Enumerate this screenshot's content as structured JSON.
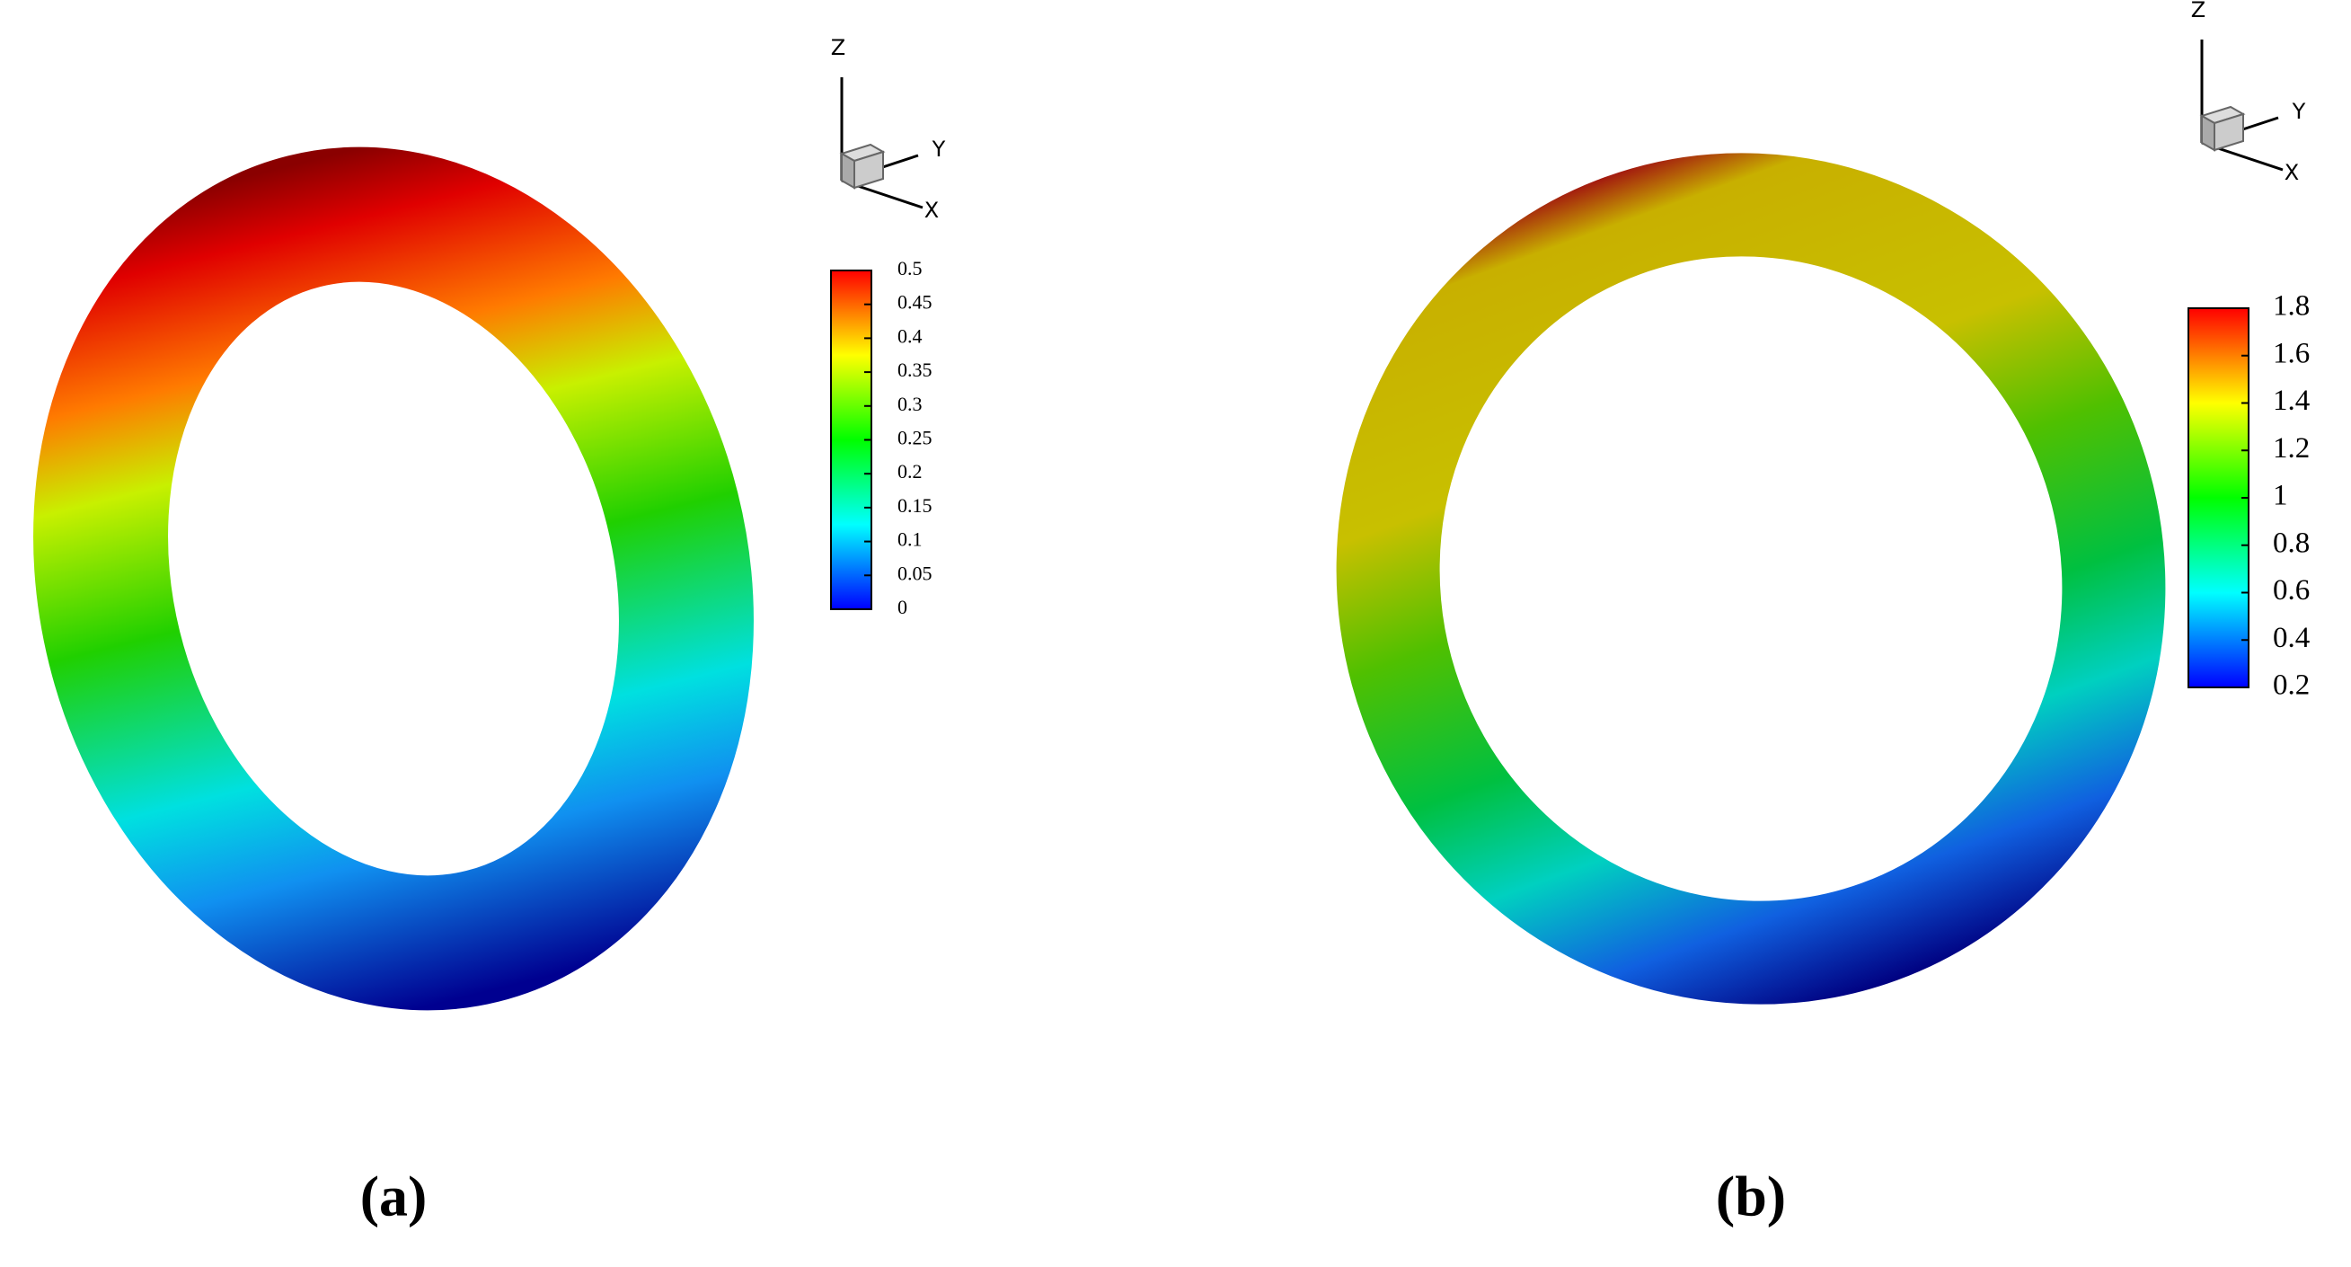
{
  "panels": [
    {
      "label": "(a)",
      "axes": {
        "x": "X",
        "y": "Y",
        "z": "Z"
      },
      "colorbar": {
        "ticks": [
          0,
          0.05,
          0.1,
          0.15,
          0.2,
          0.25,
          0.3,
          0.35,
          0.4,
          0.45,
          0.5
        ]
      }
    },
    {
      "label": "(b)",
      "axes": {
        "x": "X",
        "y": "Y",
        "z": "Z"
      },
      "colorbar": {
        "ticks": [
          0.2,
          0.4,
          0.6,
          0.8,
          1,
          1.2,
          1.4,
          1.6,
          1.8
        ]
      }
    }
  ]
}
